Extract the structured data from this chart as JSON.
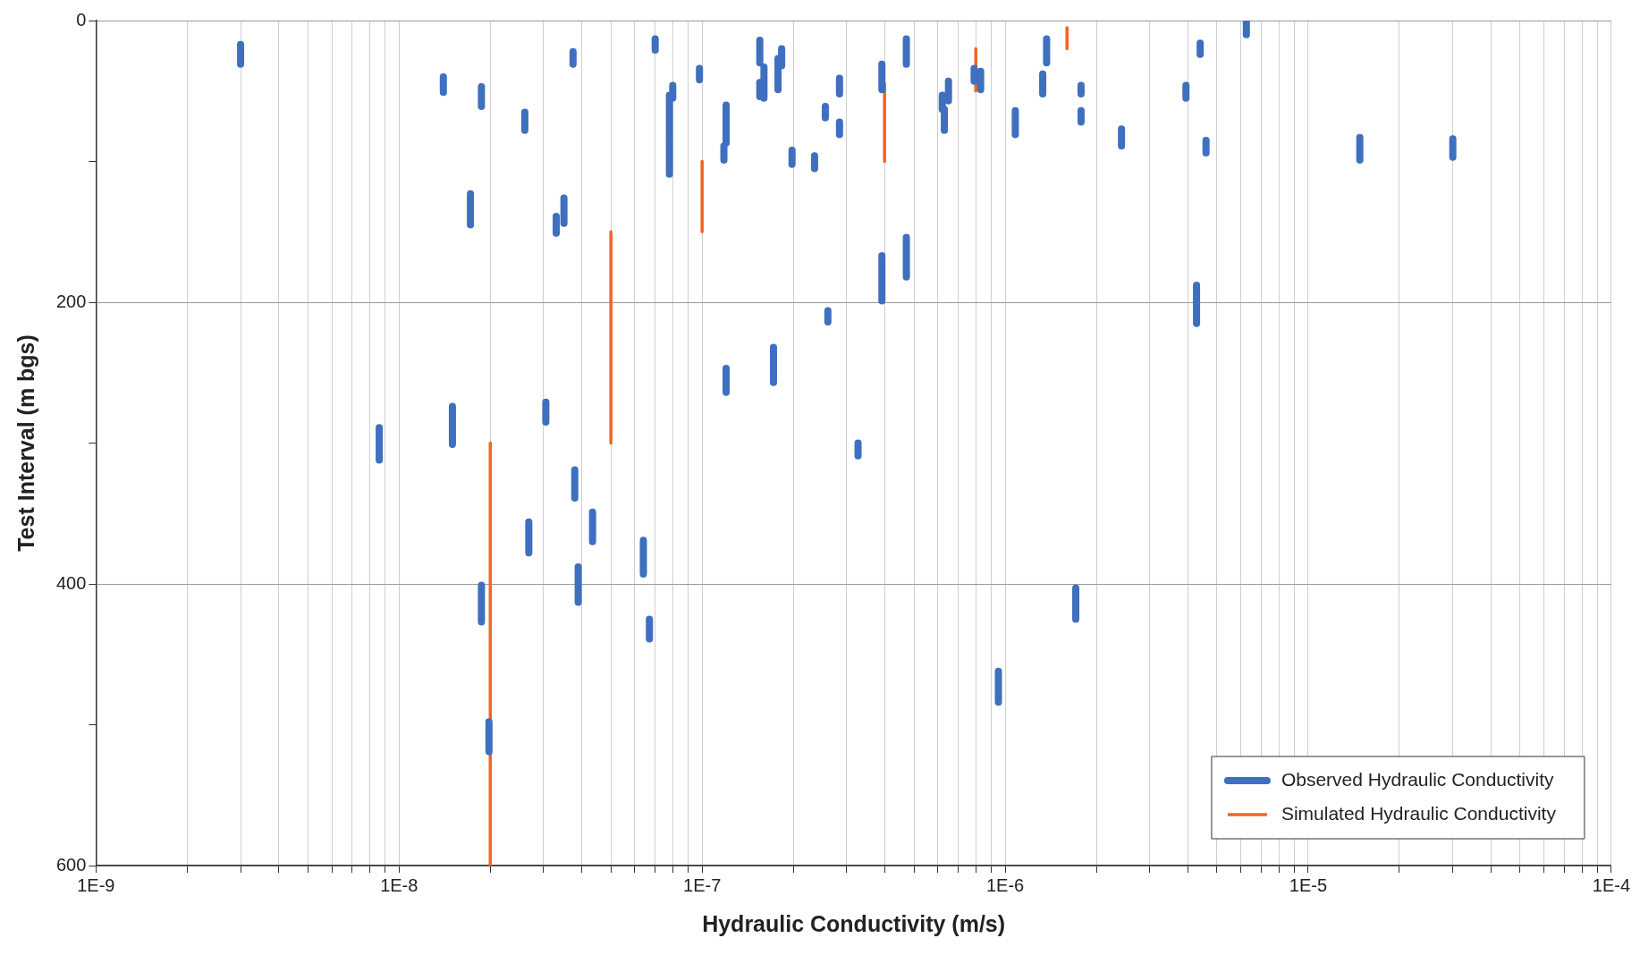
{
  "chart_data": {
    "type": "line",
    "xlabel": "Hydraulic Conductivity (m/s)",
    "ylabel": "Test Interval (m bgs)",
    "log": "x",
    "xlim": [
      1e-09,
      0.0001
    ],
    "ylim": [
      600,
      0
    ],
    "xticks": [
      {
        "value": 1e-09,
        "label": "1E-9"
      },
      {
        "value": 2e-09,
        "label": null
      },
      {
        "value": 3e-09,
        "label": null
      },
      {
        "value": 4e-09,
        "label": null
      },
      {
        "value": 5e-09,
        "label": null
      },
      {
        "value": 6e-09,
        "label": null
      },
      {
        "value": 7e-09,
        "label": null
      },
      {
        "value": 8e-09,
        "label": null
      },
      {
        "value": 9e-09,
        "label": null
      },
      {
        "value": 1e-08,
        "label": "1E-8"
      },
      {
        "value": 2e-08,
        "label": null
      },
      {
        "value": 3e-08,
        "label": null
      },
      {
        "value": 4e-08,
        "label": null
      },
      {
        "value": 5e-08,
        "label": null
      },
      {
        "value": 6e-08,
        "label": null
      },
      {
        "value": 7e-08,
        "label": null
      },
      {
        "value": 8e-08,
        "label": null
      },
      {
        "value": 9e-08,
        "label": null
      },
      {
        "value": 1e-07,
        "label": "1E-7"
      },
      {
        "value": 2e-07,
        "label": null
      },
      {
        "value": 3e-07,
        "label": null
      },
      {
        "value": 4e-07,
        "label": null
      },
      {
        "value": 5e-07,
        "label": null
      },
      {
        "value": 6e-07,
        "label": null
      },
      {
        "value": 7e-07,
        "label": null
      },
      {
        "value": 8e-07,
        "label": null
      },
      {
        "value": 9e-07,
        "label": null
      },
      {
        "value": 1e-06,
        "label": "1E-6"
      },
      {
        "value": 2e-06,
        "label": null
      },
      {
        "value": 3e-06,
        "label": null
      },
      {
        "value": 4e-06,
        "label": null
      },
      {
        "value": 5e-06,
        "label": null
      },
      {
        "value": 6e-06,
        "label": null
      },
      {
        "value": 7e-06,
        "label": null
      },
      {
        "value": 8e-06,
        "label": null
      },
      {
        "value": 9e-06,
        "label": null
      },
      {
        "value": 1e-05,
        "label": "1E-5"
      },
      {
        "value": 2e-05,
        "label": null
      },
      {
        "value": 3e-05,
        "label": null
      },
      {
        "value": 4e-05,
        "label": null
      },
      {
        "value": 5e-05,
        "label": null
      },
      {
        "value": 6e-05,
        "label": null
      },
      {
        "value": 7e-05,
        "label": null
      },
      {
        "value": 8e-05,
        "label": null
      },
      {
        "value": 9e-05,
        "label": null
      },
      {
        "value": 0.0001,
        "label": "1E-4"
      }
    ],
    "yticks": [
      0,
      {
        "value": 100,
        "label": null
      },
      200,
      {
        "value": 300,
        "label": null
      },
      400,
      {
        "value": 500,
        "label": null
      },
      600
    ],
    "grid": true,
    "legend": "bottom right",
    "marker": "none",
    "line_style": "solid",
    "series": [
      {
        "name": "Observed Hydraulic Conductivity",
        "color": "#3f6fbf",
        "x": [
          3e-09,
          3e-09,
          null,
          1.4e-08,
          1.4e-08,
          null,
          1.87e-08,
          1.87e-08,
          null,
          2.6e-08,
          2.6e-08,
          null,
          1.72e-08,
          1.72e-08,
          null,
          3.3e-08,
          3.3e-08,
          null,
          3.5e-08,
          3.5e-08,
          null,
          3.75e-08,
          3.75e-08,
          null,
          7e-08,
          7e-08,
          null,
          9.8e-08,
          9.8e-08,
          null,
          8e-08,
          8e-08,
          null,
          7.8e-08,
          7.8e-08,
          null,
          7.8e-08,
          7.8e-08,
          null,
          1.2e-07,
          1.2e-07,
          null,
          1.18e-07,
          1.18e-07,
          null,
          1.55e-07,
          1.55e-07,
          null,
          1.55e-07,
          1.55e-07,
          null,
          1.6e-07,
          1.6e-07,
          null,
          1.78e-07,
          1.78e-07,
          null,
          1.83e-07,
          1.83e-07,
          null,
          1.98e-07,
          1.98e-07,
          null,
          2.35e-07,
          2.35e-07,
          null,
          2.55e-07,
          2.55e-07,
          null,
          2.84e-07,
          2.84e-07,
          null,
          2.84e-07,
          2.84e-07,
          null,
          2.6e-07,
          2.6e-07,
          null,
          1.2e-07,
          1.2e-07,
          null,
          1.72e-07,
          1.72e-07,
          null,
          3.27e-07,
          3.27e-07,
          null,
          3.92e-07,
          3.92e-07,
          null,
          3.92e-07,
          3.92e-07,
          null,
          4.72e-07,
          4.72e-07,
          null,
          4.72e-07,
          4.72e-07,
          null,
          6.2e-07,
          6.2e-07,
          null,
          6.3e-07,
          6.3e-07,
          null,
          6.5e-07,
          6.5e-07,
          null,
          7.9e-07,
          7.9e-07,
          null,
          8.3e-07,
          8.3e-07,
          null,
          1.08e-06,
          1.08e-06,
          null,
          1.33e-06,
          1.33e-06,
          null,
          1.37e-06,
          1.37e-06,
          null,
          1.78e-06,
          1.78e-06,
          null,
          1.78e-06,
          1.78e-06,
          null,
          2.42e-06,
          2.42e-06,
          null,
          3.95e-06,
          3.95e-06,
          null,
          4.4e-06,
          4.4e-06,
          null,
          4.6e-06,
          4.6e-06,
          null,
          6.25e-06,
          6.25e-06,
          null,
          1.48e-05,
          1.48e-05,
          null,
          3e-05,
          3e-05,
          null,
          4.28e-06,
          4.28e-06,
          null,
          1.71e-06,
          1.71e-06,
          null,
          9.5e-07,
          9.5e-07,
          null,
          8.6e-09,
          8.6e-09,
          null,
          1.5e-08,
          1.5e-08,
          null,
          3.05e-08,
          3.05e-08,
          null,
          3.8e-08,
          3.8e-08,
          null,
          4.35e-08,
          4.35e-08,
          null,
          3.9e-08,
          3.9e-08,
          null,
          2.68e-08,
          2.68e-08,
          null,
          1.87e-08,
          1.87e-08,
          null,
          6.4e-08,
          6.4e-08,
          null,
          6.7e-08,
          6.7e-08,
          null,
          1.98e-08,
          1.98e-08
        ],
        "values": [
          17,
          31,
          null,
          40,
          51,
          null,
          47,
          61,
          null,
          65,
          78,
          null,
          123,
          145,
          null,
          139,
          151,
          null,
          126,
          144,
          null,
          22,
          31,
          null,
          13,
          21,
          null,
          34,
          42,
          null,
          46,
          55,
          null,
          53,
          83,
          null,
          84,
          109,
          null,
          60,
          87,
          null,
          89,
          99,
          null,
          14,
          30,
          null,
          44,
          54,
          null,
          33,
          55,
          null,
          27,
          49,
          null,
          20,
          32,
          null,
          92,
          102,
          null,
          96,
          105,
          null,
          61,
          69,
          null,
          41,
          52,
          null,
          72,
          81,
          null,
          206,
          214,
          null,
          247,
          264,
          null,
          232,
          257,
          null,
          300,
          309,
          null,
          31,
          49,
          null,
          167,
          199,
          null,
          13,
          31,
          null,
          154,
          182,
          null,
          53,
          63,
          null,
          63,
          78,
          null,
          43,
          57,
          null,
          34,
          43,
          null,
          36,
          49,
          null,
          64,
          81,
          null,
          38,
          52,
          null,
          13,
          30,
          null,
          46,
          52,
          null,
          64,
          72,
          null,
          77,
          89,
          null,
          46,
          55,
          null,
          16,
          24,
          null,
          85,
          94,
          null,
          1,
          10,
          null,
          83,
          99,
          null,
          84,
          97,
          null,
          188,
          215,
          null,
          403,
          425,
          null,
          462,
          484,
          null,
          289,
          312,
          null,
          274,
          301,
          null,
          271,
          285,
          null,
          319,
          339,
          null,
          349,
          370,
          null,
          388,
          413,
          null,
          356,
          378,
          null,
          401,
          427,
          null,
          369,
          393,
          null,
          425,
          439,
          null,
          498,
          519
        ]
      },
      {
        "name": "Simulated Hydraulic Conductivity",
        "color": "#f26522",
        "x": [
          2e-08,
          2e-08,
          null,
          5e-08,
          5e-08,
          null,
          1e-07,
          1e-07,
          null,
          4e-07,
          4e-07,
          null,
          8e-07,
          8e-07,
          null,
          1.6e-06,
          1.6e-06
        ],
        "values": [
          300,
          600,
          null,
          150,
          300,
          null,
          100,
          150,
          null,
          45,
          100,
          null,
          20,
          50,
          null,
          5,
          20
        ]
      }
    ]
  }
}
